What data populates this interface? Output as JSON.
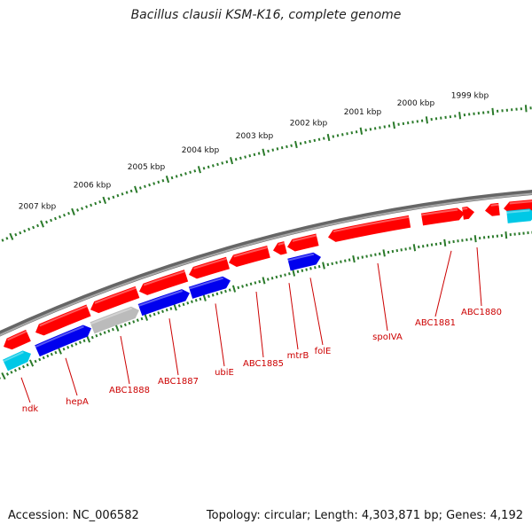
{
  "title": "Bacillus clausii KSM-K16, complete genome",
  "footer": {
    "accession": "Accession: NC_006582",
    "topology": "Topology: circular; Length: 4,303,871 bp; Genes: 4,192"
  },
  "colors": {
    "forward": "#ff0000",
    "reverse": "#0000ee",
    "rna": "#00c8e6",
    "other": "#bbbbbb",
    "backbone": "#777777",
    "scale": "#2a7a2a",
    "label": "#cc0000"
  },
  "scale_labels": [
    "2007 kbp",
    "2006 kbp",
    "2005 kbp",
    "2004 kbp",
    "2003 kbp",
    "2002 kbp",
    "2001 kbp",
    "2000 kbp",
    "1999 kbp"
  ],
  "gene_labels": [
    "ndk",
    "hepA",
    "ABC1888",
    "ABC1887",
    "ubiE",
    "ABC1885",
    "mtrB",
    "folE",
    "spoIVA",
    "ABC1881",
    "ABC1880"
  ]
}
